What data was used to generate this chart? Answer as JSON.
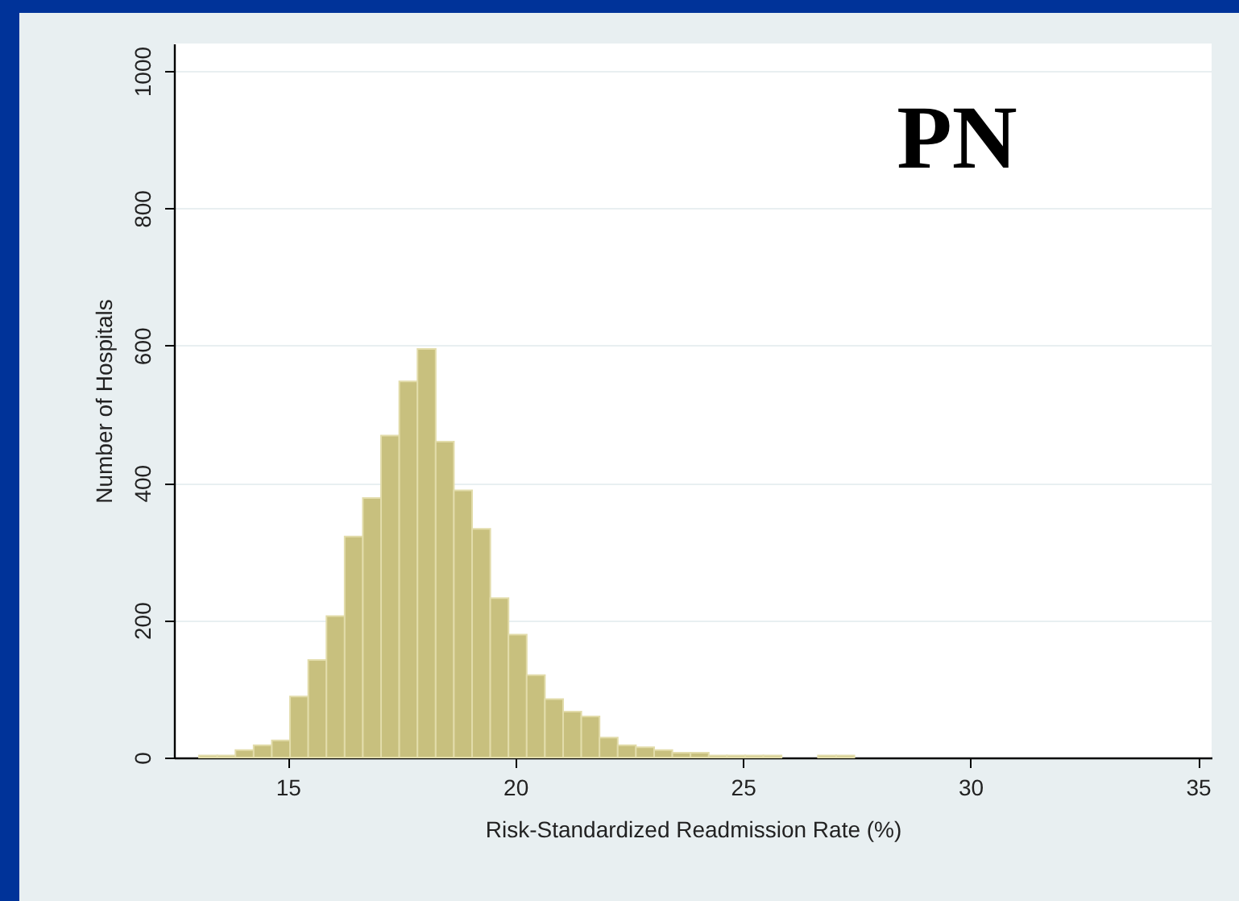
{
  "chart_data": {
    "type": "histogram",
    "xlabel": "Risk-Standardized Readmission Rate (%)",
    "ylabel": "Number of Hospitals",
    "annotations": [
      "PN"
    ],
    "bins": [
      13.05,
      13.45,
      13.85,
      14.25,
      14.65,
      15.05,
      15.45,
      15.85,
      16.25,
      16.65,
      17.05,
      17.45,
      17.85,
      18.25,
      18.65,
      19.05,
      19.45,
      19.85,
      20.25,
      20.65,
      21.05,
      21.45,
      21.85,
      22.25,
      22.65,
      23.05,
      23.45,
      23.85,
      24.25,
      24.65,
      25.05,
      25.45,
      25.85,
      26.25,
      26.65,
      27.05,
      27.45
    ],
    "values": [
      3,
      3,
      11,
      18,
      25,
      89,
      142,
      206,
      322,
      378,
      469,
      548,
      595,
      460,
      389,
      333,
      232,
      179,
      120,
      85,
      67,
      60,
      29,
      18,
      15,
      11,
      7,
      7,
      3,
      3,
      3,
      3,
      0,
      0,
      3,
      3
    ],
    "color": "#c8c07e",
    "xlim": [
      12.5,
      35.3
    ],
    "xticks": [
      15,
      20,
      25,
      30,
      35
    ],
    "ylim": [
      0,
      1040
    ],
    "yticks": [
      0,
      200,
      400,
      600,
      800,
      1000
    ],
    "grid": "y"
  }
}
